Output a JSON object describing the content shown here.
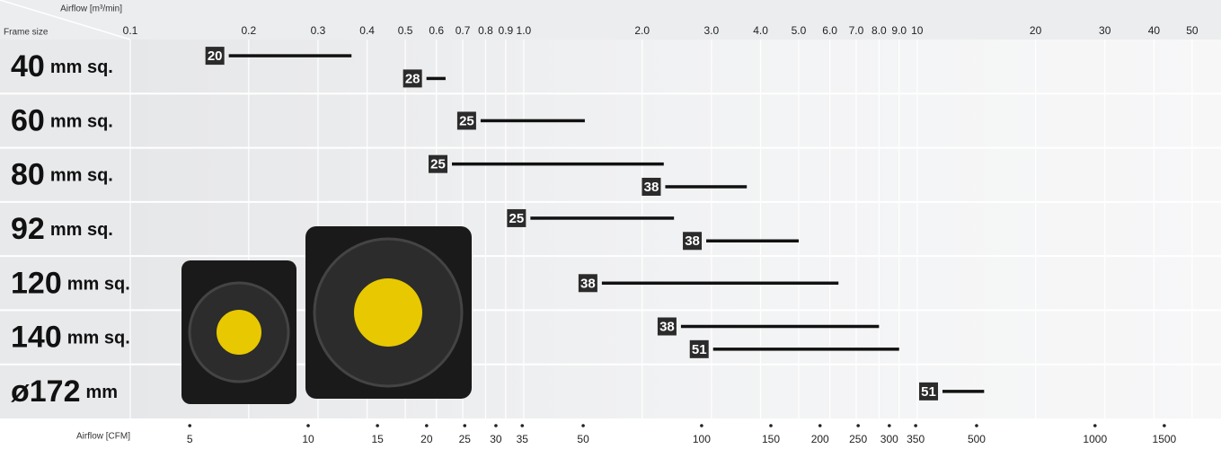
{
  "chart_data": {
    "type": "range",
    "x_title": "Airflow [m³/min]",
    "x2_title": "Airflow [CFM]",
    "row_title": "Frame size",
    "xscale": "log",
    "xlim": [
      0.1,
      55
    ],
    "xticks": [
      0.1,
      0.2,
      0.3,
      0.4,
      0.5,
      0.6,
      0.7,
      0.8,
      0.9,
      {
        "value": 1,
        "label": "1.0"
      },
      {
        "value": 2,
        "label": "2.0"
      },
      {
        "value": 3,
        "label": "3.0"
      },
      {
        "value": 4,
        "label": "4.0"
      },
      {
        "value": 5,
        "label": "5.0"
      },
      {
        "value": 6,
        "label": "6.0"
      },
      {
        "value": 7,
        "label": "7.0"
      },
      {
        "value": 8,
        "label": "8.0"
      },
      {
        "value": 9,
        "label": "9.0"
      },
      10,
      20,
      30,
      40,
      50
    ],
    "x2lim": [
      3.53,
      1942
    ],
    "x2ticks": [
      5,
      10,
      15,
      20,
      25,
      30,
      35,
      50,
      100,
      150,
      200,
      250,
      300,
      350,
      500,
      1000,
      1500
    ],
    "grid": true,
    "bar_color": "#111111",
    "rows": [
      {
        "number": "40",
        "unit": "mm sq.",
        "bars": [
          {
            "thickness": 20,
            "start": 0.178,
            "end": 0.365
          },
          {
            "thickness": 28,
            "start": 0.566,
            "end": 0.633
          }
        ]
      },
      {
        "number": "60",
        "unit": "mm sq.",
        "bars": [
          {
            "thickness": 25,
            "start": 0.777,
            "end": 1.43
          }
        ]
      },
      {
        "number": "80",
        "unit": "mm sq.",
        "bars": [
          {
            "thickness": 25,
            "start": 0.657,
            "end": 2.27
          },
          {
            "thickness": 38,
            "start": 2.29,
            "end": 3.69
          }
        ]
      },
      {
        "number": "92",
        "unit": "mm sq.",
        "bars": [
          {
            "thickness": 25,
            "start": 1.04,
            "end": 2.41
          },
          {
            "thickness": 38,
            "start": 2.91,
            "end": 5.0
          }
        ]
      },
      {
        "number": "120",
        "unit": "mm sq.",
        "bars": [
          {
            "thickness": 38,
            "start": 1.58,
            "end": 6.31
          }
        ]
      },
      {
        "number": "140",
        "unit": "mm sq.",
        "bars": [
          {
            "thickness": 38,
            "start": 2.51,
            "end": 8.0
          },
          {
            "thickness": 51,
            "start": 3.03,
            "end": 9.0
          }
        ]
      },
      {
        "number": "ø172",
        "unit": "mm",
        "bars": [
          {
            "thickness": 51,
            "start": 11.6,
            "end": 14.8
          }
        ]
      }
    ]
  }
}
